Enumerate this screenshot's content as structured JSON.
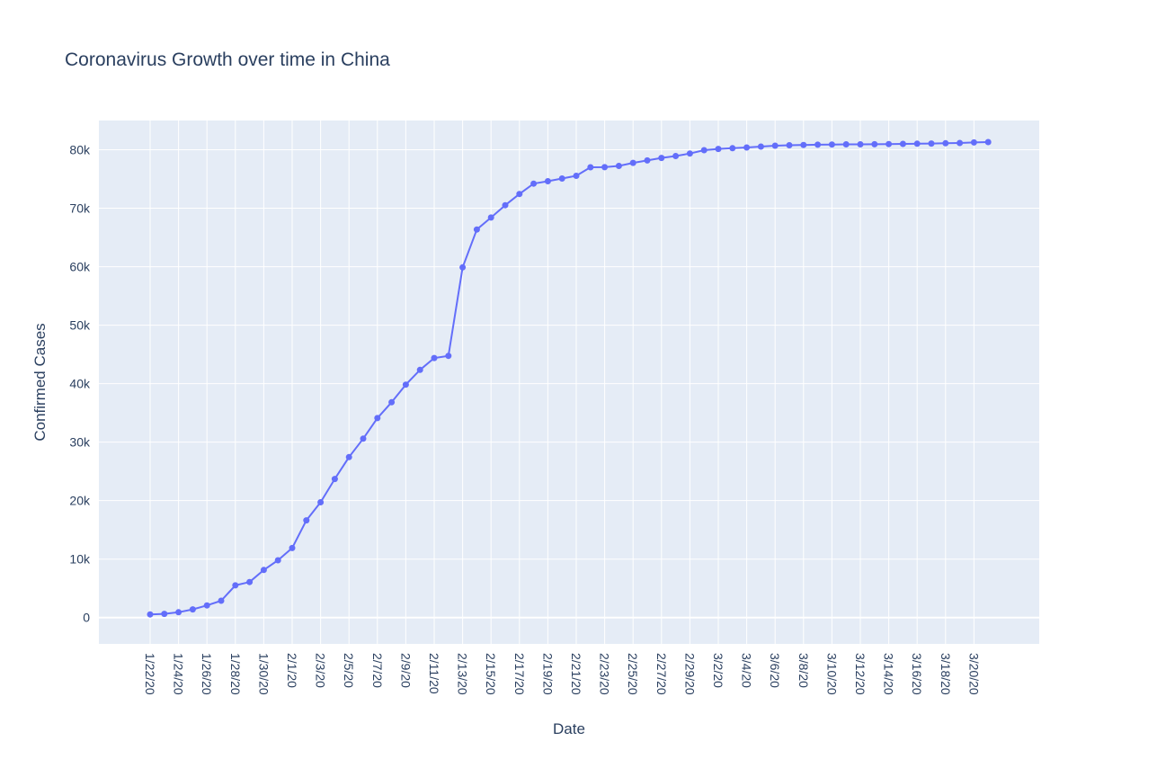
{
  "chart_data": {
    "type": "line",
    "title": "Coronavirus Growth over time in China",
    "xlabel": "Date",
    "ylabel": "Confirmed Cases",
    "grid": true,
    "ylim": [
      -4500,
      85000
    ],
    "y_ticks": [
      {
        "value": 0,
        "label": "0"
      },
      {
        "value": 10000,
        "label": "10k"
      },
      {
        "value": 20000,
        "label": "20k"
      },
      {
        "value": 30000,
        "label": "30k"
      },
      {
        "value": 40000,
        "label": "40k"
      },
      {
        "value": 50000,
        "label": "50k"
      },
      {
        "value": 60000,
        "label": "60k"
      },
      {
        "value": 70000,
        "label": "70k"
      },
      {
        "value": 80000,
        "label": "80k"
      }
    ],
    "x_tick_labels": [
      "1/22/20",
      "1/24/20",
      "1/26/20",
      "1/28/20",
      "1/30/20",
      "2/1/20",
      "2/3/20",
      "2/5/20",
      "2/7/20",
      "2/9/20",
      "2/11/20",
      "2/13/20",
      "2/15/20",
      "2/17/20",
      "2/19/20",
      "2/21/20",
      "2/23/20",
      "2/25/20",
      "2/27/20",
      "2/29/20",
      "3/2/20",
      "3/4/20",
      "3/6/20",
      "3/8/20",
      "3/10/20",
      "3/12/20",
      "3/14/20",
      "3/16/20",
      "3/18/20",
      "3/20/20"
    ],
    "series": [
      {
        "color": "#636efa",
        "x": [
          "1/22/20",
          "1/23/20",
          "1/24/20",
          "1/25/20",
          "1/26/20",
          "1/27/20",
          "1/28/20",
          "1/29/20",
          "1/30/20",
          "1/31/20",
          "2/1/20",
          "2/2/20",
          "2/3/20",
          "2/4/20",
          "2/5/20",
          "2/6/20",
          "2/7/20",
          "2/8/20",
          "2/9/20",
          "2/10/20",
          "2/11/20",
          "2/12/20",
          "2/13/20",
          "2/14/20",
          "2/15/20",
          "2/16/20",
          "2/17/20",
          "2/18/20",
          "2/19/20",
          "2/20/20",
          "2/21/20",
          "2/22/20",
          "2/23/20",
          "2/24/20",
          "2/25/20",
          "2/26/20",
          "2/27/20",
          "2/28/20",
          "2/29/20",
          "3/1/20",
          "3/2/20",
          "3/3/20",
          "3/4/20",
          "3/5/20",
          "3/6/20",
          "3/7/20",
          "3/8/20",
          "3/9/20",
          "3/10/20",
          "3/11/20",
          "3/12/20",
          "3/13/20",
          "3/14/20",
          "3/15/20",
          "3/16/20",
          "3/17/20",
          "3/18/20",
          "3/19/20",
          "3/20/20",
          "3/21/20"
        ],
        "values": [
          548,
          643,
          920,
          1406,
          2075,
          2877,
          5509,
          6087,
          8141,
          9802,
          11891,
          16630,
          19716,
          23707,
          27440,
          30587,
          34110,
          36814,
          39829,
          42354,
          44386,
          44759,
          59895,
          66358,
          68413,
          70513,
          72434,
          74211,
          74619,
          75077,
          75550,
          77001,
          77022,
          77241,
          77754,
          78166,
          78600,
          78928,
          79356,
          79932,
          80136,
          80261,
          80386,
          80537,
          80690,
          80770,
          80823,
          80860,
          80887,
          80921,
          80932,
          80945,
          80977,
          81003,
          81033,
          81058,
          81102,
          81156,
          81250,
          81305
        ]
      }
    ]
  }
}
